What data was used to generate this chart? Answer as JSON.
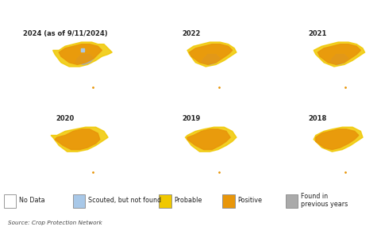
{
  "titles": [
    "2024 (as of 9/11/2024)",
    "2022",
    "2021",
    "2020",
    "2019",
    "2018"
  ],
  "legend_items": [
    {
      "label": "No Data",
      "color": "#ffffff",
      "edgecolor": "#888888"
    },
    {
      "label": "Scouted, but not found",
      "color": "#a8c8e8",
      "edgecolor": "#888888"
    },
    {
      "label": "Probable",
      "color": "#f0c800",
      "edgecolor": "#888888"
    },
    {
      "label": "Positive",
      "color": "#e8960a",
      "edgecolor": "#888888"
    },
    {
      "label": "Found in\nprevious years",
      "color": "#aaaaaa",
      "edgecolor": "#888888"
    }
  ],
  "source_text": "Source: Crop Protection Network",
  "bg_color": "#ffffff",
  "border_color": "#333333",
  "title_fontsize": 6.0,
  "legend_fontsize": 5.8,
  "source_fontsize": 5.2,
  "map_facecolor": "#f8f8f8",
  "state_linecolor": "#bbbbbb",
  "state_linewidth": 0.3,
  "county_linecolor": "#dddddd",
  "county_linewidth": 0.15,
  "xlim": [
    -125,
    -65
  ],
  "ylim": [
    24.0,
    50.0
  ]
}
